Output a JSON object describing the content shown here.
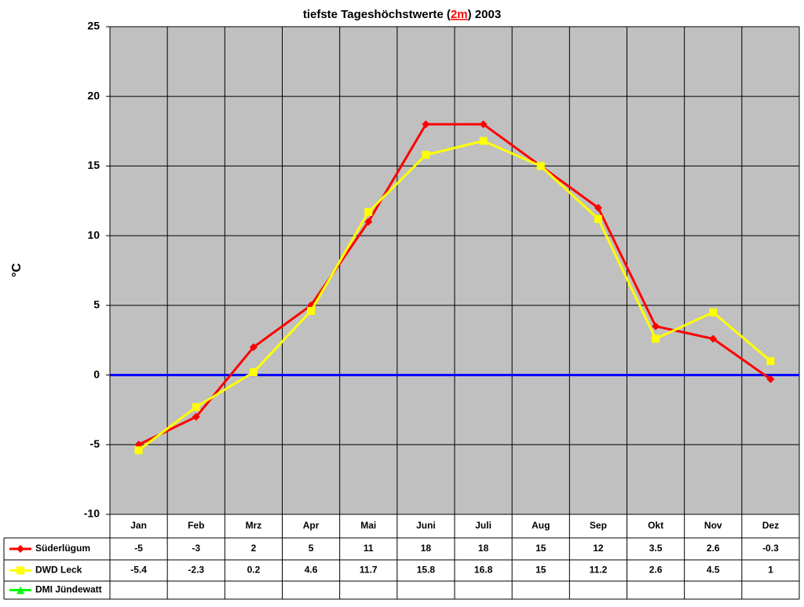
{
  "chart_data": {
    "type": "line",
    "title_parts": [
      "tiefste Tageshöchstwerte (",
      "2m",
      ") 2003"
    ],
    "y_label": "°C",
    "categories": [
      "Jan",
      "Feb",
      "Mrz",
      "Apr",
      "Mai",
      "Juni",
      "Juli",
      "Aug",
      "Sep",
      "Okt",
      "Nov",
      "Dez"
    ],
    "series": [
      {
        "name": "Süderlügum",
        "color": "#ff0000",
        "marker": "diamond",
        "values": [
          -5,
          -3,
          2,
          5,
          11,
          18,
          18,
          15,
          12,
          3.5,
          2.6,
          -0.3
        ]
      },
      {
        "name": "DWD Leck",
        "color": "#ffff00",
        "marker": "square",
        "values": [
          -5.4,
          -2.3,
          0.2,
          4.6,
          11.7,
          15.8,
          16.8,
          15,
          11.2,
          2.6,
          4.5,
          1
        ]
      },
      {
        "name": "DMI Jündewatt",
        "color": "#00ff00",
        "marker": "triangle",
        "values": [
          null,
          null,
          null,
          null,
          null,
          null,
          null,
          null,
          null,
          null,
          null,
          null
        ]
      }
    ],
    "ylim": [
      -10,
      25
    ],
    "yticks": [
      -10,
      -5,
      0,
      5,
      10,
      15,
      20,
      25
    ],
    "grid": true,
    "data_table": true
  }
}
